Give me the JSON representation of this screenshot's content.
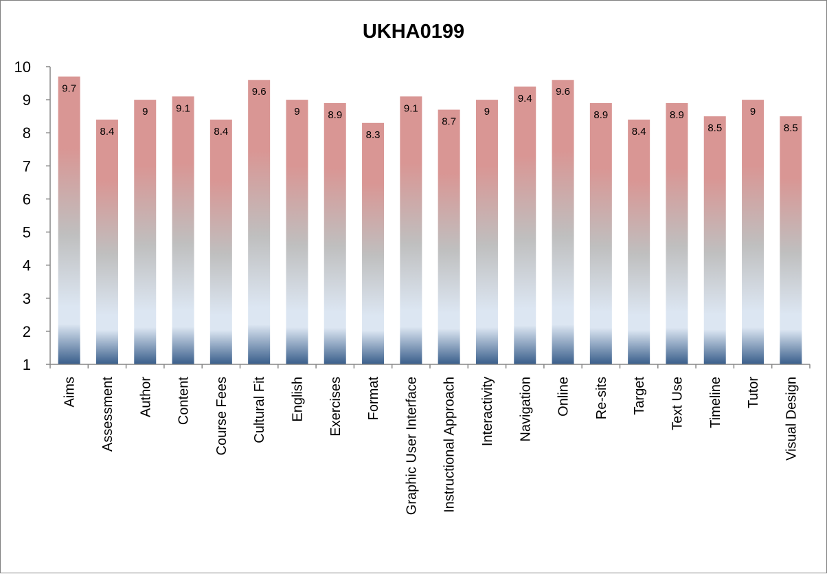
{
  "chart_data": {
    "type": "bar",
    "title": "UKHA0199",
    "xlabel": "",
    "ylabel": "",
    "ylim": [
      1,
      10
    ],
    "yticks": [
      "1",
      "2",
      "3",
      "4",
      "5",
      "6",
      "7",
      "8",
      "9",
      "10"
    ],
    "grid": false,
    "legend": "none",
    "categories": [
      "Aims",
      "Assessment",
      "Author",
      "Content",
      "Course Fees",
      "Cultural Fit",
      "English",
      "Exercises",
      "Format",
      "Graphic User Interface",
      "Instructional Approach",
      "Interactivity",
      "Navigation",
      "Online",
      "Re-sits",
      "Target",
      "Text Use",
      "Timeline",
      "Tutor",
      "Visual Design"
    ],
    "values": [
      9.7,
      8.4,
      9,
      9.1,
      8.4,
      9.6,
      9,
      8.9,
      8.3,
      9.1,
      8.7,
      9,
      9.4,
      9.6,
      8.9,
      8.4,
      8.9,
      8.5,
      9,
      8.5
    ],
    "data_labels": [
      "9.7",
      "8.4",
      "9",
      "9.1",
      "8.4",
      "9.6",
      "9",
      "8.9",
      "8.3",
      "9.1",
      "8.7",
      "9",
      "9.4",
      "9.6",
      "8.9",
      "8.4",
      "8.9",
      "8.5",
      "9",
      "8.5"
    ],
    "colors": {
      "bar_gradient_top": "#d99694",
      "bar_gradient_mid": "#bfbfbf",
      "bar_gradient_light": "#dce6f2",
      "bar_gradient_bottom": "#385d8a",
      "axis": "#868686"
    }
  }
}
